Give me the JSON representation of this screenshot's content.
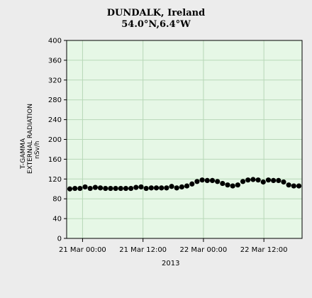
{
  "chart_data": {
    "type": "scatter",
    "title": "DUNDALK, Ireland",
    "subtitle": "54.0°N,6.4°W",
    "ylabel_lines": [
      "T-GAMMA",
      "EXTERNAL RADIATION",
      "nSv/h"
    ],
    "xlabel": "2013",
    "yticks": [
      0,
      40,
      80,
      120,
      160,
      200,
      240,
      280,
      320,
      360,
      400
    ],
    "ylim": [
      0,
      400
    ],
    "xlim": [
      0,
      7.4
    ],
    "xticks": [
      {
        "value": 0.5,
        "label": "21 Mar 00:00"
      },
      {
        "value": 2.4,
        "label": "21 Mar 12:00"
      },
      {
        "value": 4.3,
        "label": "22 Mar 00:00"
      },
      {
        "value": 6.2,
        "label": "22 Mar 12:00"
      }
    ],
    "grid": true,
    "plot_background": "#e6f7e6",
    "grid_color": "#b8d8b8",
    "marker_color": "#000000",
    "series": [
      {
        "x": [
          0.1,
          0.26,
          0.42,
          0.58,
          0.74,
          0.9,
          1.06,
          1.22,
          1.38,
          1.54,
          1.7,
          1.86,
          2.02,
          2.18,
          2.34,
          2.5,
          2.66,
          2.82,
          2.98,
          3.14,
          3.3,
          3.46,
          3.62,
          3.78,
          3.94,
          4.1,
          4.26,
          4.42,
          4.58,
          4.74,
          4.9,
          5.06,
          5.22,
          5.38,
          5.54,
          5.7,
          5.86,
          6.02,
          6.18,
          6.34,
          6.5,
          6.66,
          6.82,
          6.98,
          7.14,
          7.3
        ],
        "y": [
          100,
          101,
          101,
          104,
          101,
          103,
          102,
          101,
          101,
          101,
          101,
          101,
          101,
          103,
          104,
          101,
          102,
          102,
          102,
          102,
          105,
          102,
          104,
          106,
          110,
          115,
          118,
          117,
          117,
          115,
          111,
          108,
          106,
          108,
          115,
          118,
          119,
          118,
          114,
          118,
          117,
          117,
          114,
          108,
          106,
          106
        ]
      }
    ]
  }
}
